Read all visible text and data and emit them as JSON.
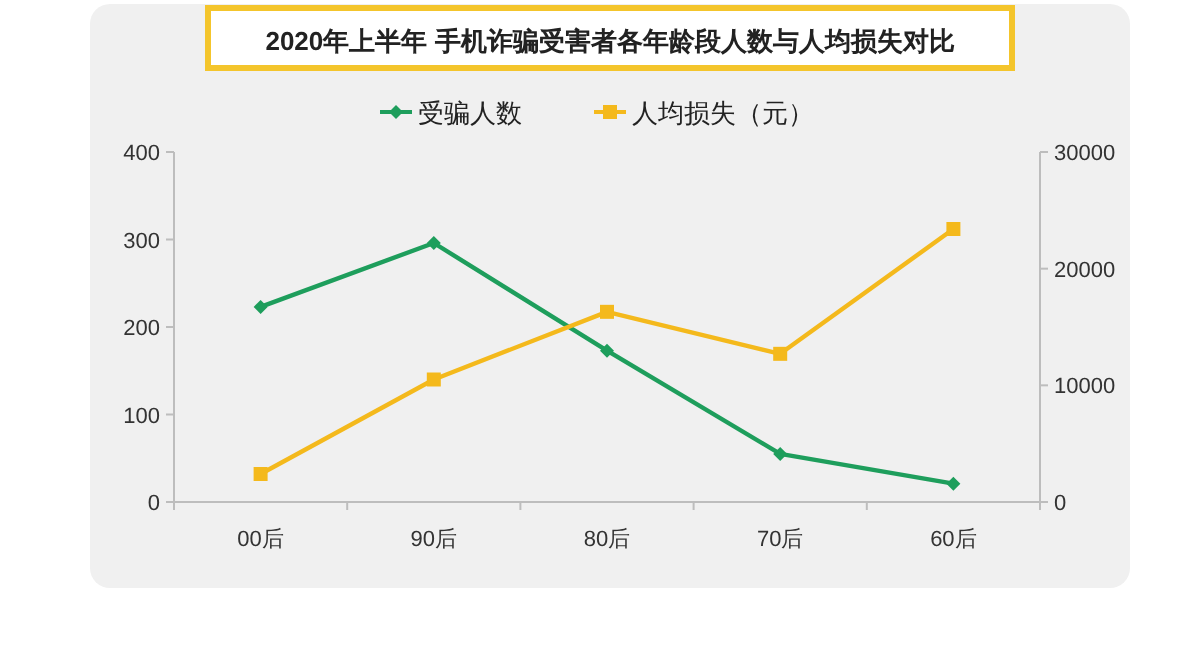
{
  "chart_data": {
    "type": "line",
    "title": "2020年上半年 手机诈骗受害者各年龄段人数与人均损失对比",
    "categories": [
      "00后",
      "90后",
      "80后",
      "70后",
      "60后"
    ],
    "series": [
      {
        "name": "受骗人数",
        "color": "#1e9e5c",
        "marker": "diamond",
        "values": [
          223,
          296,
          173,
          55,
          21
        ]
      },
      {
        "name": "人均损失（元）",
        "color": "#f4b91c",
        "marker": "square",
        "axis": "y2",
        "values": [
          2400,
          10500,
          16300,
          12700,
          23400
        ]
      }
    ],
    "ylim": [
      0,
      400
    ],
    "yticks": [
      0,
      100,
      200,
      300,
      400
    ],
    "y2lim": [
      0,
      30000
    ],
    "y2ticks": [
      0,
      10000,
      20000,
      30000
    ],
    "grid": false,
    "legend": "top"
  }
}
